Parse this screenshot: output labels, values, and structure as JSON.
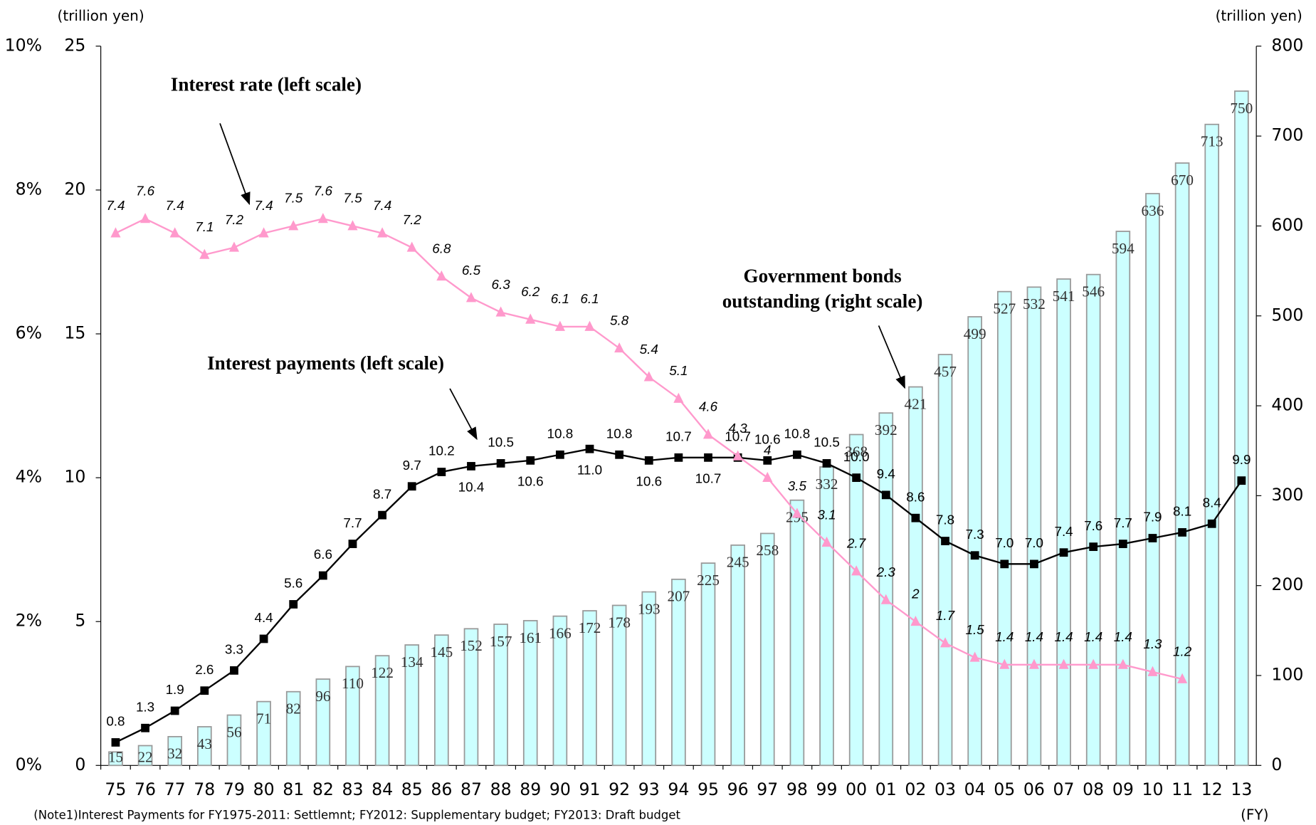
{
  "chart_data": {
    "type": "bar-line",
    "categories": [
      "75",
      "76",
      "77",
      "78",
      "79",
      "80",
      "81",
      "82",
      "83",
      "84",
      "85",
      "86",
      "87",
      "88",
      "89",
      "90",
      "91",
      "92",
      "93",
      "94",
      "95",
      "96",
      "97",
      "98",
      "99",
      "00",
      "01",
      "02",
      "03",
      "04",
      "05",
      "06",
      "07",
      "08",
      "09",
      "10",
      "11",
      "12",
      "13"
    ],
    "ylim": [
      0,
      25
    ],
    "yticks": [
      0,
      5,
      10,
      15,
      20,
      25
    ],
    "ylim_pct": [
      0,
      10
    ],
    "yticks_pct": [
      {
        "value": 0,
        "label": "0%"
      },
      {
        "value": 2,
        "label": "2%"
      },
      {
        "value": 4,
        "label": "4%"
      },
      {
        "value": 6,
        "label": "6%"
      },
      {
        "value": 8,
        "label": "8%"
      },
      {
        "value": 10,
        "label": "10%"
      }
    ],
    "y2lim": [
      0,
      800
    ],
    "y2ticks": [
      0,
      100,
      200,
      300,
      400,
      500,
      600,
      700,
      800
    ],
    "left_unit": "(trillion yen)",
    "right_unit": "(trillion yen)",
    "x_unit": "(FY)",
    "note": "(Note1)Interest Payments for FY1975-2011: Settlemnt; FY2012: Supplementary budget; FY2013: Draft budget",
    "annotations": [
      {
        "lines": [
          "Interest rate (left scale)"
        ]
      },
      {
        "lines": [
          "Interest payments (left scale)"
        ]
      },
      {
        "lines": [
          "Government bonds",
          "outstanding (right scale)"
        ]
      }
    ],
    "series": [
      {
        "name": "Government bonds outstanding",
        "kind": "bar",
        "axis": "y2",
        "color": "#ccffff",
        "values": [
          15,
          22,
          32,
          43,
          56,
          71,
          82,
          96,
          110,
          122,
          134,
          145,
          152,
          157,
          161,
          166,
          172,
          178,
          193,
          207,
          225,
          245,
          258,
          295,
          332,
          368,
          392,
          421,
          457,
          499,
          527,
          532,
          541,
          546,
          594,
          636,
          670,
          713,
          750
        ]
      },
      {
        "name": "Interest payments",
        "kind": "line",
        "axis": "y",
        "color": "#000000",
        "values": [
          0.8,
          1.3,
          1.9,
          2.6,
          3.3,
          4.4,
          5.6,
          6.6,
          7.7,
          8.7,
          9.7,
          10.2,
          10.4,
          10.5,
          10.6,
          10.8,
          11.0,
          10.8,
          10.6,
          10.7,
          10.7,
          10.7,
          10.6,
          10.8,
          10.5,
          10.0,
          9.4,
          8.6,
          7.8,
          7.3,
          7.0,
          7.0,
          7.4,
          7.6,
          7.7,
          7.9,
          8.1,
          8.4,
          9.9
        ],
        "value_labels": [
          "0.8",
          "1.3",
          "1.9",
          "2.6",
          "3.3",
          "4.4",
          "5.6",
          "6.6",
          "7.7",
          "8.7",
          "9.7",
          "10.2",
          "10.4",
          "10.5",
          "10.6",
          "10.8",
          "11.0",
          "10.8",
          "10.6",
          "10.7",
          "10.7",
          "10.7",
          "10.6",
          "10.8",
          "10.5",
          "10.0",
          "9.4",
          "8.6",
          "7.8",
          "7.3",
          "7.0",
          "7.0",
          "7.4",
          "7.6",
          "7.7",
          "7.9",
          "8.1",
          "8.4",
          "9.9"
        ]
      },
      {
        "name": "Interest rate",
        "kind": "line",
        "axis": "pct",
        "color": "#ff99cc",
        "values": [
          7.4,
          7.6,
          7.4,
          7.1,
          7.2,
          7.4,
          7.5,
          7.6,
          7.5,
          7.4,
          7.2,
          6.8,
          6.5,
          6.3,
          6.2,
          6.1,
          6.1,
          5.8,
          5.4,
          5.1,
          4.6,
          4.3,
          4.0,
          3.5,
          3.1,
          2.7,
          2.3,
          2.0,
          1.7,
          1.5,
          1.4,
          1.4,
          1.4,
          1.4,
          1.4,
          1.3,
          1.2,
          null,
          null
        ]
      }
    ]
  }
}
